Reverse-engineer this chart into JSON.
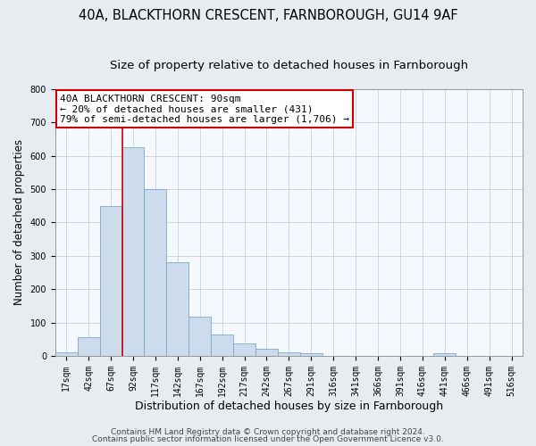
{
  "title": "40A, BLACKTHORN CRESCENT, FARNBOROUGH, GU14 9AF",
  "subtitle": "Size of property relative to detached houses in Farnborough",
  "xlabel": "Distribution of detached houses by size in Farnborough",
  "ylabel": "Number of detached properties",
  "bar_labels": [
    "17sqm",
    "42sqm",
    "67sqm",
    "92sqm",
    "117sqm",
    "142sqm",
    "167sqm",
    "192sqm",
    "217sqm",
    "242sqm",
    "267sqm",
    "291sqm",
    "316sqm",
    "341sqm",
    "366sqm",
    "391sqm",
    "416sqm",
    "441sqm",
    "466sqm",
    "491sqm",
    "516sqm"
  ],
  "bar_values": [
    10,
    55,
    450,
    625,
    500,
    280,
    118,
    63,
    38,
    22,
    10,
    8,
    0,
    0,
    0,
    0,
    0,
    8,
    0,
    0,
    0
  ],
  "bar_color": "#cddcec",
  "bar_edge_color": "#7aaac8",
  "red_line_x": 2.5,
  "ylim": [
    0,
    800
  ],
  "yticks": [
    0,
    100,
    200,
    300,
    400,
    500,
    600,
    700,
    800
  ],
  "annotation_title": "40A BLACKTHORN CRESCENT: 90sqm",
  "annotation_line1": "← 20% of detached houses are smaller (431)",
  "annotation_line2": "79% of semi-detached houses are larger (1,706) →",
  "annotation_box_facecolor": "#ffffff",
  "annotation_box_edgecolor": "#cc0000",
  "footer1": "Contains HM Land Registry data © Crown copyright and database right 2024.",
  "footer2": "Contains public sector information licensed under the Open Government Licence v3.0.",
  "bg_color": "#e8ecf0",
  "plot_bg_color": "#f5f8fc",
  "title_fontsize": 10.5,
  "subtitle_fontsize": 9.5,
  "xlabel_fontsize": 9,
  "ylabel_fontsize": 8.5,
  "tick_fontsize": 7,
  "annotation_fontsize": 8,
  "footer_fontsize": 6.5
}
